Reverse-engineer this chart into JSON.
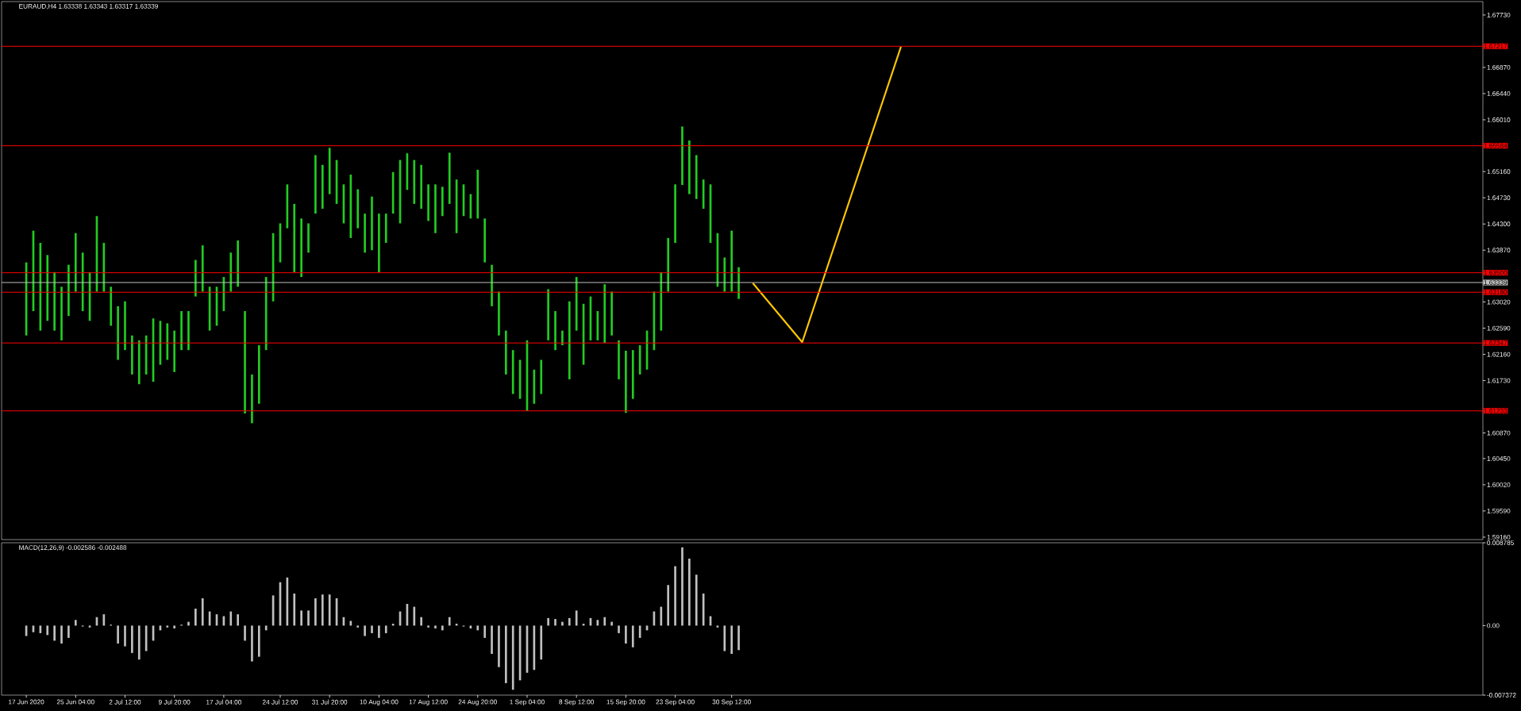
{
  "chart_data": [
    {
      "type": "bar",
      "title": "EURAUD,H4 1.63338 1.63343 1.63317 1.63339",
      "tick_labels": "y",
      "categories": [
        null,
        null,
        null,
        null,
        null,
        null,
        null,
        null,
        null,
        null,
        null,
        null,
        null,
        null,
        null,
        null,
        null,
        null,
        null,
        null,
        null,
        null,
        null,
        null,
        null,
        null,
        null,
        null,
        null,
        null,
        null,
        null,
        null,
        null,
        null,
        null,
        null,
        null,
        null,
        null,
        null,
        null,
        null,
        null,
        null,
        null,
        null,
        null,
        null,
        null,
        null,
        null,
        null,
        null,
        null,
        null,
        null,
        null,
        null,
        null,
        null,
        null,
        null,
        null,
        null,
        null,
        null,
        null,
        null,
        null,
        null,
        null,
        null,
        null,
        null,
        null,
        null,
        null,
        null,
        null,
        null,
        null,
        null,
        null,
        null,
        null,
        null,
        null,
        null,
        null,
        null,
        null,
        null,
        null,
        null,
        null,
        null,
        null,
        null,
        null,
        null,
        null,
        null,
        null,
        null,
        null,
        null,
        null,
        null,
        null,
        null,
        null,
        null,
        null,
        null,
        null,
        null,
        null,
        null,
        null,
        null,
        null,
        null,
        null,
        null,
        null,
        null,
        null,
        null,
        null,
        null,
        null,
        null,
        null,
        null,
        null,
        null,
        null,
        null,
        null,
        null,
        null,
        null,
        null,
        null,
        null,
        null,
        null,
        null,
        null,
        null,
        null,
        null,
        null,
        null,
        null,
        null,
        null,
        null,
        null,
        null,
        null,
        null,
        null,
        null,
        null,
        null,
        null,
        null,
        null,
        null,
        null,
        null,
        null,
        null,
        null,
        null,
        null,
        null,
        null,
        null,
        null,
        null,
        null,
        null,
        null,
        null,
        null,
        null,
        null,
        null,
        null,
        null,
        null,
        null,
        null,
        null,
        null,
        null,
        null,
        null,
        null,
        null,
        null,
        null,
        null,
        null,
        null,
        null,
        null
      ],
      "ylim": [
        1.5912,
        1.6795
      ],
      "yticks": [
        {
          "value": 1.6773,
          "label": "1.67730"
        },
        {
          "value": 1.6687,
          "label": "1.66870"
        },
        {
          "value": 1.6644,
          "label": "1.66440"
        },
        {
          "value": 1.6601,
          "label": "1.66010"
        },
        {
          "value": 1.6516,
          "label": "1.65160"
        },
        {
          "value": 1.6473,
          "label": "1.64730"
        },
        {
          "value": 1.643,
          "label": "1.64300"
        },
        {
          "value": 1.6387,
          "label": "1.63870"
        },
        {
          "value": 1.6302,
          "label": "1.63020"
        },
        {
          "value": 1.6259,
          "label": "1.62590"
        },
        {
          "value": 1.6216,
          "label": "1.62160"
        },
        {
          "value": 1.6173,
          "label": "1.61730"
        },
        {
          "value": 1.6087,
          "label": "1.60870"
        },
        {
          "value": 1.6045,
          "label": "1.60450"
        },
        {
          "value": 1.6002,
          "label": "1.60020"
        },
        {
          "value": 1.5959,
          "label": "1.59590"
        },
        {
          "value": 1.5916,
          "label": "1.59160"
        }
      ],
      "ref_lines": [
        {
          "axis": "y",
          "value": 1.67217,
          "label": "1.67217",
          "color": "#ff0000"
        },
        {
          "axis": "y",
          "value": 1.65584,
          "label": "1.65584",
          "color": "#ff0000"
        },
        {
          "axis": "y",
          "value": 1.635,
          "label": "1.63500",
          "color": "#ff0000"
        },
        {
          "axis": "y",
          "value": 1.63339,
          "label": "1.63339",
          "color": "#c0c0c0"
        },
        {
          "axis": "y",
          "value": 1.6318,
          "label": "1.63180",
          "color": "#ff0000"
        },
        {
          "axis": "y",
          "value": 1.62347,
          "label": "1.62347",
          "color": "#ff0000"
        },
        {
          "axis": "y",
          "value": 1.61233,
          "label": "1.61233",
          "color": "#ff0000"
        }
      ],
      "series": [
        {
          "color": "#22cc22",
          "base": [
            null,
            null,
            null,
            1.6247,
            1.6287,
            1.6255,
            1.6271,
            1.6255,
            1.6239,
            1.6279,
            1.6319,
            1.6287,
            1.6271,
            1.6319,
            1.6319,
            1.6263,
            1.6207,
            1.6223,
            1.6183,
            1.6167,
            1.6183,
            1.6171,
            1.6199,
            1.6207,
            1.6187,
            1.6223,
            1.6223,
            1.6311,
            1.6319,
            1.6255,
            1.6263,
            1.6287,
            1.6319,
            1.6327,
            1.6119,
            1.6103,
            1.6135,
            1.6223,
            1.6303,
            1.6367,
            1.6423,
            1.6351,
            1.6343,
            1.6383,
            1.6447,
            1.6455,
            1.6479,
            1.6463,
            1.6431,
            1.6407,
            1.6423,
            1.6383,
            1.6387,
            1.6351,
            1.6399,
            1.6447,
            1.6431,
            1.6486,
            1.6463,
            1.6455,
            1.6435,
            1.6415,
            1.6443,
            1.6463,
            1.6415,
            1.6443,
            1.6439,
            1.6439,
            1.6367,
            1.6295,
            1.6247,
            1.6183,
            1.6151,
            1.6143,
            1.6123,
            1.6135,
            1.6151,
            1.6239,
            1.6223,
            1.6231,
            1.6175,
            1.6255,
            1.6199,
            1.6239,
            1.6239,
            1.6235,
            1.6247,
            1.6175,
            1.612,
            1.6143,
            1.6183,
            1.6191,
            1.6223,
            1.6255,
            1.6319,
            1.6399,
            1.6494,
            1.6479,
            1.6471,
            1.6455,
            1.6399,
            1.6327,
            1.6319,
            1.6319,
            1.6307,
            null,
            null,
            null,
            null,
            null,
            null,
            null,
            null,
            null,
            null,
            null,
            null,
            null,
            null,
            null,
            null,
            null,
            null,
            null,
            null,
            null,
            null,
            null,
            null,
            null,
            null,
            null,
            null,
            null,
            null,
            null,
            null,
            null,
            null,
            null,
            null,
            null,
            null,
            null,
            null,
            null,
            null,
            null,
            null,
            null,
            null,
            null,
            null,
            null,
            null,
            null,
            null,
            null,
            null,
            null,
            null,
            null,
            null,
            null,
            null,
            null,
            null,
            null,
            null,
            null,
            null,
            null,
            null,
            null,
            null,
            null,
            null,
            null,
            null,
            null,
            null,
            null,
            null,
            null,
            null,
            null,
            null,
            null,
            null,
            null,
            null,
            null,
            null,
            null,
            null,
            null,
            null,
            null,
            null,
            null,
            null,
            null,
            null,
            null,
            null,
            null,
            null,
            null,
            null,
            null
          ],
          "values": [
            null,
            null,
            null,
            0.012,
            0.0132,
            0.0144,
            0.0108,
            0.0096,
            0.0088,
            0.0084,
            0.0096,
            0.0096,
            0.008,
            0.0124,
            0.008,
            0.0064,
            0.0088,
            0.008,
            0.0064,
            0.0072,
            0.0064,
            0.0104,
            0.0072,
            0.006,
            0.0068,
            0.0064,
            0.0064,
            0.006,
            0.0076,
            0.0072,
            0.0064,
            0.0056,
            0.0064,
            0.0076,
            0.0168,
            0.008,
            0.0096,
            0.012,
            0.0112,
            0.0064,
            0.0072,
            0.0112,
            0.0096,
            0.0048,
            0.0096,
            0.0072,
            0.0076,
            0.0072,
            0.0064,
            0.0104,
            0.0064,
            0.0064,
            0.0088,
            0.0096,
            0.0048,
            0.0068,
            0.0104,
            0.006,
            0.0072,
            0.0072,
            0.006,
            0.008,
            0.0048,
            0.0084,
            0.0088,
            0.0052,
            0.004,
            0.008,
            0.0072,
            0.0068,
            0.0072,
            0.0072,
            0.0072,
            0.0064,
            0.0116,
            0.0056,
            0.0056,
            0.0084,
            0.0064,
            0.0024,
            0.0128,
            0.0088,
            0.01,
            0.0072,
            0.0048,
            0.0096,
            0.0072,
            0.0064,
            0.0102,
            0.008,
            0.0048,
            0.0064,
            0.0096,
            0.0096,
            0.0088,
            0.0096,
            0.0096,
            0.0088,
            0.0072,
            0.0048,
            0.0096,
            0.0088,
            0.0056,
            0.01,
            0.0052,
            null,
            null,
            null,
            null,
            null,
            null,
            null,
            null,
            null,
            null,
            null,
            null,
            null,
            null,
            null,
            null,
            null,
            null,
            null,
            null,
            null,
            null,
            null,
            null,
            null,
            null,
            null,
            null,
            null,
            null,
            null,
            null,
            null,
            null,
            null,
            null,
            null,
            null,
            null,
            null,
            null,
            null,
            null,
            null,
            null,
            null,
            null,
            null,
            null,
            null,
            null,
            null,
            null,
            null,
            null,
            null,
            null,
            null,
            null,
            null,
            null,
            null,
            null,
            null,
            null,
            null,
            null,
            null,
            null,
            null,
            null,
            null,
            null,
            null,
            null,
            null,
            null,
            null,
            null,
            null,
            null,
            null,
            null,
            null,
            null,
            null,
            null,
            null,
            null,
            null,
            null,
            null,
            null,
            null,
            null,
            null,
            null,
            null,
            null,
            null,
            null,
            null,
            null,
            null,
            null
          ]
        },
        {
          "type": "line",
          "color": "#ffc800",
          "values": [
            null,
            null,
            null,
            null,
            null,
            null,
            null,
            null,
            null,
            null,
            null,
            null,
            null,
            null,
            null,
            null,
            null,
            null,
            null,
            null,
            null,
            null,
            null,
            null,
            null,
            null,
            null,
            null,
            null,
            null,
            null,
            null,
            null,
            null,
            null,
            null,
            null,
            null,
            null,
            null,
            null,
            null,
            null,
            null,
            null,
            null,
            null,
            null,
            null,
            null,
            null,
            null,
            null,
            null,
            null,
            null,
            null,
            null,
            null,
            null,
            null,
            null,
            null,
            null,
            null,
            null,
            null,
            null,
            null,
            null,
            null,
            null,
            null,
            null,
            null,
            null,
            null,
            null,
            null,
            null,
            null,
            null,
            null,
            null,
            null,
            null,
            null,
            null,
            null,
            null,
            null,
            null,
            null,
            null,
            null,
            null,
            null,
            null,
            null,
            null,
            null,
            null,
            null,
            null,
            null,
            null,
            1.6333,
            null,
            null,
            null,
            null,
            null,
            null,
            1.6236,
            null,
            null,
            null,
            null,
            null,
            null,
            null,
            null,
            null,
            null,
            null,
            null,
            null,
            1.6721,
            null,
            null,
            null,
            null,
            null,
            null,
            null,
            null,
            null,
            null,
            null,
            null,
            null,
            null,
            null,
            null,
            null,
            null,
            null,
            null,
            null,
            null,
            null,
            null,
            null,
            null,
            null,
            null,
            null,
            null,
            null,
            null,
            null,
            null,
            null,
            null,
            null,
            null,
            null,
            null,
            null,
            null,
            null,
            null,
            null,
            null,
            null,
            null,
            null,
            null,
            null,
            null,
            null,
            null,
            null,
            null,
            null,
            null,
            null,
            null,
            null,
            null,
            null,
            null,
            null,
            null,
            null,
            null,
            null,
            null,
            null,
            null,
            null,
            null,
            null,
            null,
            null,
            null,
            null,
            null,
            null,
            null
          ]
        }
      ]
    },
    {
      "type": "bar",
      "title": "MACD(12,26,9) -0.002586 -0.002488",
      "categories": [
        null,
        null,
        null,
        "17 Jun 2020",
        null,
        null,
        null,
        null,
        null,
        null,
        "25 Jun 04:00",
        null,
        null,
        null,
        null,
        null,
        null,
        "2 Jul 12:00",
        null,
        null,
        null,
        null,
        null,
        null,
        "9 Jul 20:00",
        null,
        null,
        null,
        null,
        null,
        null,
        "17 Jul 04:00",
        null,
        null,
        null,
        null,
        null,
        null,
        null,
        "24 Jul 12:00",
        null,
        null,
        null,
        null,
        null,
        null,
        "31 Jul 20:00",
        null,
        null,
        null,
        null,
        null,
        null,
        "10 Aug 04:00",
        null,
        null,
        null,
        null,
        null,
        null,
        "17 Aug 12:00",
        null,
        null,
        null,
        null,
        null,
        null,
        "24 Aug 20:00",
        null,
        null,
        null,
        null,
        null,
        null,
        "1 Sep 04:00",
        null,
        null,
        null,
        null,
        null,
        null,
        "8 Sep 12:00",
        null,
        null,
        null,
        null,
        null,
        null,
        "15 Sep 20:00",
        null,
        null,
        null,
        null,
        null,
        null,
        "23 Sep 04:00",
        null,
        null,
        null,
        null,
        null,
        null,
        null,
        "30 Sep 12:00",
        null,
        null,
        null,
        null,
        null,
        null,
        null,
        null,
        null,
        null,
        null,
        null,
        null,
        null,
        null,
        null,
        null,
        null,
        null,
        null,
        null,
        null,
        null,
        null,
        null,
        null,
        null,
        null,
        null,
        null,
        null,
        null,
        null,
        null,
        null,
        null,
        null,
        null,
        null,
        null,
        null,
        null,
        null,
        null,
        null,
        null,
        null,
        null,
        null,
        null,
        null,
        null,
        null,
        null,
        null,
        null,
        null,
        null,
        null,
        null,
        null,
        null,
        null,
        null,
        null,
        null,
        null,
        null,
        null,
        null,
        null,
        null,
        null,
        null,
        null,
        null,
        null,
        null,
        null,
        null,
        null,
        null,
        null,
        null,
        null,
        null,
        null,
        null,
        null,
        null,
        null,
        null,
        null,
        null,
        null,
        null,
        null,
        null,
        null,
        null,
        null,
        null,
        null,
        null,
        null,
        null
      ],
      "ylim": [
        -0.007372,
        0.008785
      ],
      "yticks": [
        0.008785,
        {
          "value": 0,
          "label": "0.00"
        },
        -0.007372
      ],
      "series": [
        {
          "color": "#c0c0c0",
          "values": [
            null,
            null,
            null,
            -0.0011,
            -0.0007,
            -0.0008,
            -0.001,
            -0.0016,
            -0.0019,
            -0.0013,
            0.0006,
            -0.0001,
            -0.0002,
            0.0009,
            0.0012,
            0.0001,
            -0.0019,
            -0.0022,
            -0.0029,
            -0.0036,
            -0.0027,
            -0.0016,
            -0.0005,
            -0.0002,
            -0.0003,
            0.0001,
            0.0004,
            0.0018,
            0.0029,
            0.0015,
            0.0012,
            0.001,
            0.0015,
            0.0012,
            -0.0016,
            -0.0038,
            -0.0033,
            -0.0005,
            0.0032,
            0.0046,
            0.0051,
            0.0034,
            0.0016,
            0.0016,
            0.0029,
            0.0033,
            0.0033,
            0.0029,
            0.0009,
            0.0005,
            -0.0002,
            -0.0011,
            -0.0008,
            -0.0013,
            -0.0008,
            0.0002,
            0.0015,
            0.0023,
            0.002,
            0.0009,
            -0.0002,
            -0.0003,
            -0.0005,
            0.0009,
            0.0002,
            -0.0001,
            -0.0003,
            -0.0005,
            -0.0013,
            -0.003,
            -0.0044,
            -0.0061,
            -0.0068,
            -0.0058,
            -0.005,
            -0.0047,
            -0.0036,
            0.0008,
            0.0007,
            0.0004,
            0.0008,
            0.0016,
            0.0002,
            0.0008,
            0.0006,
            0.0009,
            0.0004,
            -0.0008,
            -0.0019,
            -0.0023,
            -0.0013,
            -0.0005,
            0.0015,
            0.002,
            0.0043,
            0.0063,
            0.0083,
            0.0071,
            0.0054,
            0.0034,
            0.001,
            -0.0002,
            -0.0027,
            -0.003,
            -0.0026,
            null,
            null,
            null,
            null,
            null,
            null,
            null,
            null,
            null,
            null,
            null,
            null,
            null,
            null,
            null,
            null,
            null,
            null,
            null,
            null,
            null,
            null,
            null,
            null,
            null,
            null,
            null,
            null,
            null,
            null,
            null,
            null,
            null,
            null,
            null,
            null,
            null,
            null,
            null,
            null,
            null,
            null,
            null,
            null,
            null,
            null,
            null,
            null,
            null,
            null,
            null,
            null,
            null,
            null,
            null,
            null,
            null,
            null,
            null,
            null,
            null,
            null,
            null,
            null,
            null,
            null,
            null,
            null,
            null,
            null,
            null,
            null,
            null,
            null,
            null,
            null,
            null,
            null,
            null,
            null,
            null,
            null,
            null,
            null,
            null,
            null,
            null,
            null,
            null,
            null,
            null,
            null,
            null,
            null,
            null,
            null,
            null,
            null,
            null,
            null,
            null,
            null,
            null,
            null,
            null
          ]
        }
      ]
    }
  ]
}
